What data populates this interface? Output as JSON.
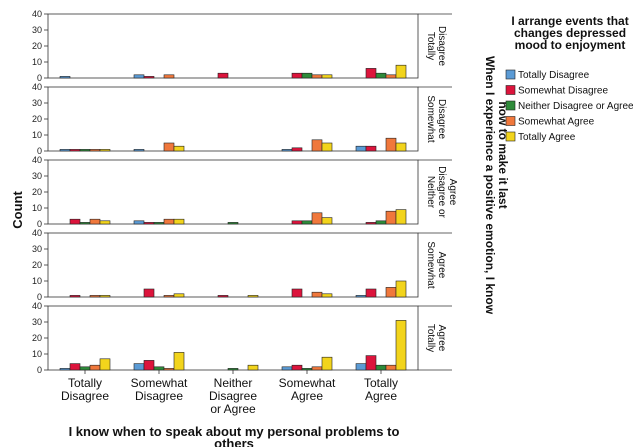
{
  "chart_data": {
    "type": "bar",
    "ylabel": "Count",
    "xlabel": "I know when to speak about  my personal problems to others",
    "column_header": "When I experience a positive emotion,  I know how to make it last",
    "legend_title": "I arrange  events that changes depressed mood to enjoyment",
    "categories": [
      "Totally Disagree",
      "Somewhat Disagree",
      "Neither Disagree or Agree",
      "Somewhat Agree",
      "Totally Agree"
    ],
    "category_label_lines": [
      [
        "Totally",
        "Disagree"
      ],
      [
        "Somewhat",
        "Disagree"
      ],
      [
        "Neither",
        "Disagree",
        "or Agree"
      ],
      [
        "Somewhat",
        "Agree"
      ],
      [
        "Totally",
        "Agree"
      ]
    ],
    "row_label_lines": [
      [
        "Totally",
        "Disagree"
      ],
      [
        "Somewhat",
        "Disagree"
      ],
      [
        "Neither",
        "Disagree or",
        "Agree"
      ],
      [
        "Somewhat",
        "Agree"
      ],
      [
        "Totally",
        "Agree"
      ]
    ],
    "y_ticks": [
      0,
      10,
      20,
      30,
      40
    ],
    "ylim": [
      0,
      40
    ],
    "grid": false,
    "legend_position": "right",
    "series": [
      {
        "name": "Totally Disagree",
        "color": "#5b9bd5"
      },
      {
        "name": "Somewhat Disagree",
        "color": "#dc143c"
      },
      {
        "name": "Neither Disagree or Agree",
        "color": "#2e8b3a"
      },
      {
        "name": "Somewhat Agree",
        "color": "#f0783c"
      },
      {
        "name": "Totally Agree",
        "color": "#f2d41c"
      }
    ],
    "panels": [
      {
        "row": "Totally Disagree",
        "values": [
          [
            1,
            0,
            0,
            0,
            0
          ],
          [
            2,
            1,
            0,
            2,
            0
          ],
          [
            0,
            3,
            0,
            0,
            0
          ],
          [
            0,
            3,
            3,
            2,
            2
          ],
          [
            0,
            6,
            3,
            2,
            8
          ]
        ]
      },
      {
        "row": "Somewhat Disagree",
        "values": [
          [
            1,
            1,
            1,
            1,
            1
          ],
          [
            1,
            0,
            0,
            5,
            3
          ],
          [
            0,
            0,
            0,
            0,
            0
          ],
          [
            1,
            2,
            0,
            7,
            5
          ],
          [
            3,
            3,
            0,
            8,
            5
          ]
        ]
      },
      {
        "row": "Neither Disagree or Agree",
        "values": [
          [
            0,
            3,
            1,
            3,
            2
          ],
          [
            2,
            1,
            1,
            3,
            3
          ],
          [
            0,
            0,
            1,
            0,
            0
          ],
          [
            0,
            2,
            2,
            7,
            4
          ],
          [
            0,
            1,
            2,
            8,
            9
          ]
        ]
      },
      {
        "row": "Somewhat Agree",
        "values": [
          [
            0,
            1,
            0,
            1,
            1
          ],
          [
            0,
            5,
            0,
            1,
            2
          ],
          [
            0,
            1,
            0,
            0,
            1
          ],
          [
            0,
            5,
            0,
            3,
            2
          ],
          [
            1,
            5,
            0,
            6,
            10
          ]
        ]
      },
      {
        "row": "Totally Agree",
        "values": [
          [
            1,
            4,
            2,
            3,
            7
          ],
          [
            4,
            6,
            2,
            1,
            11
          ],
          [
            0,
            0,
            1,
            0,
            3
          ],
          [
            2,
            3,
            1,
            2,
            8
          ],
          [
            4,
            9,
            3,
            3,
            31
          ]
        ]
      }
    ]
  }
}
